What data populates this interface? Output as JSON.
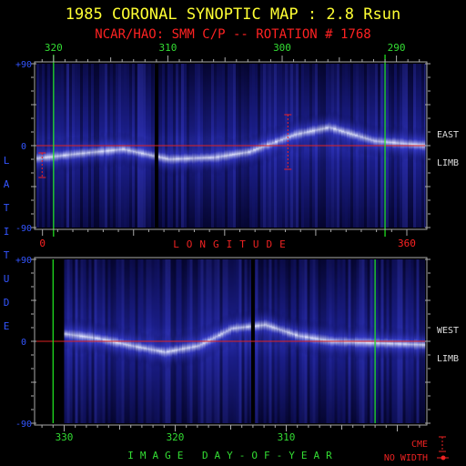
{
  "title": "1985 CORONAL SYNOPTIC MAP : 2.8 Rsun",
  "subtitle": "NCAR/HAO: SMM C/P -- ROTATION # 1768",
  "colors": {
    "title": "#ffff33",
    "subtitle": "#ff2222",
    "axis_text": "#3355ff",
    "day_text": "#33dd33",
    "limb_text": "#dddddd",
    "equator": "#dd2222",
    "day_marker": "#22ee22",
    "cme": "#ee2222",
    "frame": "#aaaaaa"
  },
  "chart_data": [
    {
      "type": "heatmap",
      "name_label": "EAST",
      "limb_label": "LIMB",
      "x_axis": {
        "label": "IMAGE DAY-OF-YEAR",
        "ticks": [
          "320",
          "310",
          "300",
          "290"
        ],
        "range": [
          321.5,
          287.5
        ]
      },
      "y_axis": {
        "label": "LATITUDE",
        "ticks": [
          "+90",
          "0",
          "-90"
        ],
        "range": [
          -90,
          90
        ]
      },
      "longitude_axis": {
        "label": "LONGITUDE",
        "ticks": [
          "0",
          "360"
        ],
        "range": [
          -6,
          378
        ]
      },
      "equator_line_latitude": 0,
      "day_markers_day": [
        320,
        291
      ],
      "data_gap_day": 311,
      "brightness_ridge": [
        {
          "day": 321.5,
          "lat": -14
        },
        {
          "day": 318,
          "lat": -9
        },
        {
          "day": 314,
          "lat": -4
        },
        {
          "day": 310,
          "lat": -15
        },
        {
          "day": 306,
          "lat": -13
        },
        {
          "day": 303,
          "lat": -7
        },
        {
          "day": 299,
          "lat": 12
        },
        {
          "day": 296,
          "lat": 20
        },
        {
          "day": 292,
          "lat": 5
        },
        {
          "day": 287.5,
          "lat": 0
        }
      ],
      "cme_markers": [
        {
          "day": 321,
          "lat_range": [
            -8,
            -35
          ]
        },
        {
          "day": 299.5,
          "lat_range": [
            34,
            -26
          ]
        }
      ]
    },
    {
      "type": "heatmap",
      "name_label": "WEST",
      "limb_label": "LIMB",
      "x_axis": {
        "label": "IMAGE DAY-OF-YEAR",
        "ticks": [
          "330",
          "320",
          "310"
        ],
        "range": [
          332.5,
          297.5
        ]
      },
      "y_axis": {
        "label": "LATITUDE",
        "ticks": [
          "+90",
          "0",
          "-90"
        ],
        "range": [
          -90,
          90
        ]
      },
      "equator_line_latitude": 0,
      "day_markers_day": [
        331,
        302
      ],
      "data_gap_day": 313,
      "data_start_day": 330,
      "brightness_ridge": [
        {
          "day": 330,
          "lat": 8
        },
        {
          "day": 327,
          "lat": 3
        },
        {
          "day": 324,
          "lat": -5
        },
        {
          "day": 321,
          "lat": -12
        },
        {
          "day": 318,
          "lat": -5
        },
        {
          "day": 315,
          "lat": 14
        },
        {
          "day": 312,
          "lat": 18
        },
        {
          "day": 309,
          "lat": 6
        },
        {
          "day": 306,
          "lat": 0
        },
        {
          "day": 297.5,
          "lat": -4
        }
      ]
    }
  ],
  "legend": {
    "cme_label": "CME",
    "no_width_label": "NO WIDTH"
  }
}
